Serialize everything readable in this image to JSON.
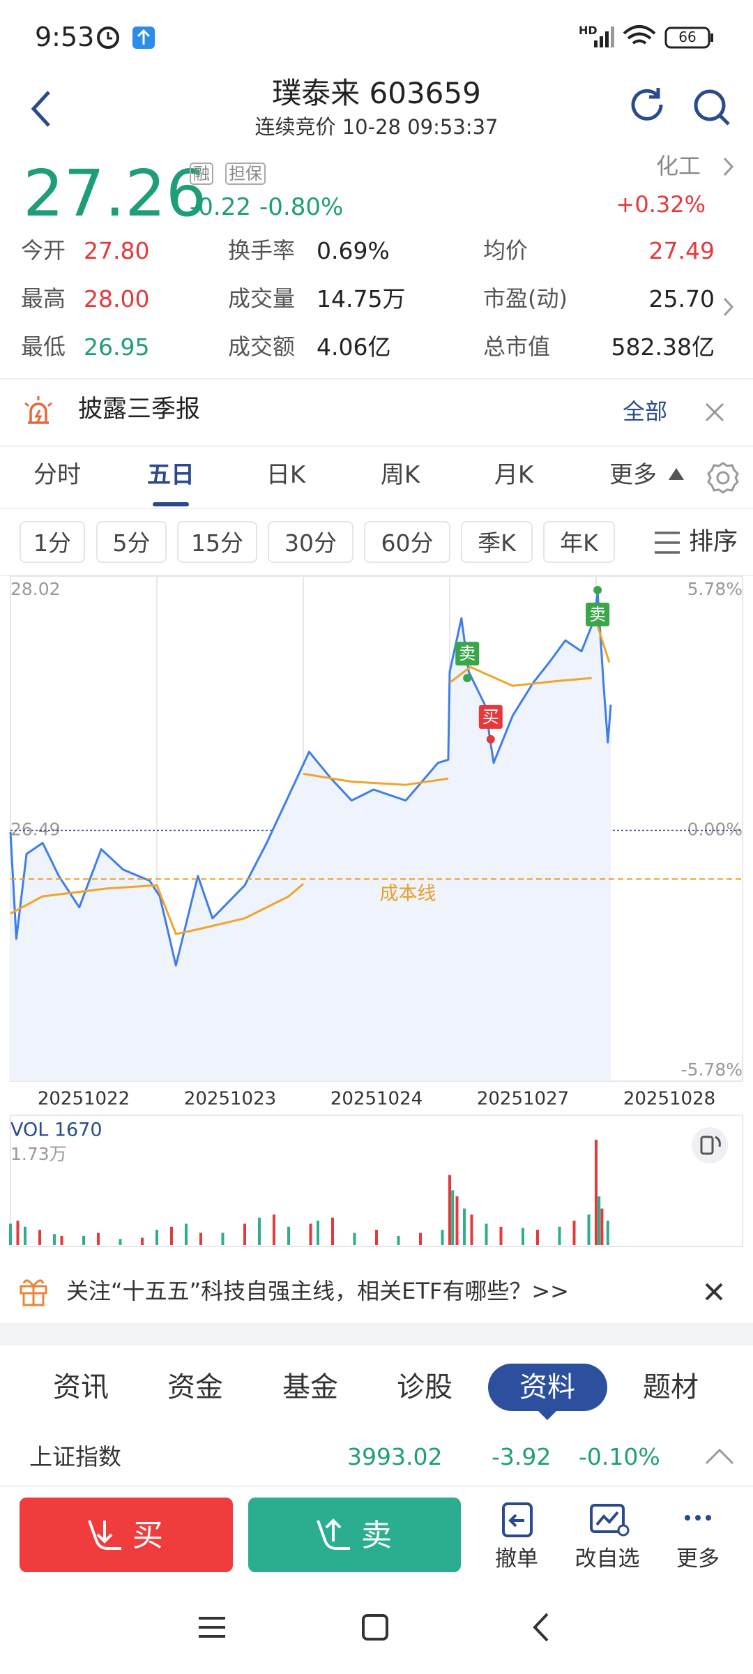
{
  "status": {
    "time": "9:53",
    "hd": "HD",
    "battery": "66"
  },
  "header": {
    "title": "璞泰来 603659",
    "subtitle": "连续竞价 10-28 09:53:37"
  },
  "quote": {
    "price": "27.26",
    "tags": [
      "融",
      "担保"
    ],
    "change": "-0.22",
    "change_pct": "-0.80%",
    "sector": "化工",
    "sector_change": "+0.32%"
  },
  "stats": [
    {
      "label": "今开",
      "value": "27.80",
      "color": "#e5393b"
    },
    {
      "label": "换手率",
      "value": "0.69%",
      "color": "#222222"
    },
    {
      "label": "均价",
      "value": "27.49",
      "color": "#e5393b"
    },
    {
      "label": "最高",
      "value": "28.00",
      "color": "#e5393b"
    },
    {
      "label": "成交量",
      "value": "14.75万",
      "color": "#222222"
    },
    {
      "label": "市盈(动)",
      "value": "25.70",
      "color": "#222222"
    },
    {
      "label": "最低",
      "value": "26.95",
      "color": "#1e9e78"
    },
    {
      "label": "成交额",
      "value": "4.06亿",
      "color": "#222222"
    },
    {
      "label": "总市值",
      "value": "582.38亿",
      "color": "#222222"
    }
  ],
  "notice": {
    "text": "披露三季报",
    "link": "全部"
  },
  "tabs": {
    "items": [
      "分时",
      "五日",
      "日K",
      "周K",
      "月K",
      "更多"
    ],
    "active": 1
  },
  "sub_tabs": {
    "items": [
      "1分",
      "5分",
      "15分",
      "30分",
      "60分",
      "季K",
      "年K"
    ],
    "sort": "排序"
  },
  "chart_data": {
    "type": "line",
    "xlim": [
      0,
      5
    ],
    "ylim": [
      24.96,
      28.02
    ],
    "y2lim": [
      -5.78,
      5.78
    ],
    "yticks": [
      24.96,
      26.49,
      28.02
    ],
    "y2ticks": [
      {
        "value": -5.78,
        "label": "-5.78%"
      },
      {
        "value": 0,
        "label": "0.00%"
      },
      {
        "value": 5.78,
        "label": "5.78%"
      }
    ],
    "xticks": [
      {
        "value": 0.5,
        "label": "20251022"
      },
      {
        "value": 1.5,
        "label": "20251023"
      },
      {
        "value": 2.5,
        "label": "20251024"
      },
      {
        "value": 3.5,
        "label": "20251027"
      },
      {
        "value": 4.5,
        "label": "20251028"
      }
    ],
    "series": [
      {
        "color": "#3f7ee8",
        "x": [
          0,
          0.04,
          0.11,
          0.22,
          0.33,
          0.47,
          0.62,
          0.77,
          0.95,
          1.02,
          1.13,
          1.28,
          1.38,
          1.6,
          1.75,
          1.9,
          2.04,
          2.19,
          2.33,
          2.48,
          2.7,
          2.92,
          2.99,
          3.0,
          3.08,
          3.13,
          3.24,
          3.3,
          3.43,
          3.57,
          3.68,
          3.79,
          3.9,
          3.99,
          4.01,
          4.05,
          4.08,
          4.1
        ],
        "values": [
          26.48,
          25.8,
          26.34,
          26.41,
          26.2,
          26.0,
          26.37,
          26.24,
          26.17,
          26.07,
          25.63,
          26.2,
          25.93,
          26.14,
          26.41,
          26.71,
          26.99,
          26.82,
          26.68,
          26.75,
          26.68,
          26.92,
          26.94,
          27.5,
          27.84,
          27.5,
          27.29,
          26.92,
          27.22,
          27.43,
          27.56,
          27.7,
          27.63,
          27.84,
          28.01,
          27.43,
          27.05,
          27.29
        ]
      },
      {
        "color": "#f0a528",
        "x": [
          0,
          0.22,
          0.66,
          1.0,
          1.13,
          1.28,
          1.6,
          1.9,
          2.0,
          2.0,
          2.0,
          2.33,
          2.7,
          2.99,
          3.0,
          3.0,
          3.14,
          3.43,
          3.72,
          3.97,
          4.0,
          4.0,
          4.09
        ],
        "values": [
          25.96,
          26.07,
          26.12,
          26.14,
          25.83,
          25.86,
          25.93,
          26.07,
          26.15,
          null,
          26.85,
          26.8,
          26.78,
          26.82,
          null,
          27.43,
          27.53,
          27.41,
          27.44,
          27.46,
          null,
          27.82,
          27.56
        ]
      }
    ],
    "cost_line": {
      "value": 26.18,
      "label": "成本线"
    },
    "annotations": [
      {
        "text": "卖",
        "x": 3.12,
        "y": 27.46,
        "color": "#3aa64a"
      },
      {
        "text": "买",
        "x": 3.28,
        "y": 27.07,
        "color": "#e5393b"
      },
      {
        "text": "卖",
        "x": 4.01,
        "y": 28.02,
        "color": "#3aa64a"
      }
    ],
    "volume": {
      "label": "VOL 1670",
      "max_label": "1.73万",
      "ylim": [
        0,
        17300
      ],
      "series": [
        {
          "color": "#e5393b",
          "x": [
            0.05,
            0.2,
            0.35,
            0.6,
            0.9,
            1.1,
            1.3,
            1.6,
            1.8,
            2.05,
            2.2,
            2.5,
            2.8,
            3.0,
            3.05,
            3.15,
            3.35,
            3.6,
            3.85,
            4.0,
            4.04
          ],
          "values": [
            4000,
            2500,
            1500,
            2000,
            1200,
            3000,
            2000,
            3500,
            5000,
            3500,
            4500,
            2500,
            2000,
            11500,
            8000,
            5000,
            3000,
            2500,
            4000,
            17300,
            6000
          ]
        },
        {
          "color": "#2eae8c",
          "x": [
            0.0,
            0.1,
            0.3,
            0.5,
            0.75,
            1.0,
            1.2,
            1.45,
            1.7,
            1.9,
            2.1,
            2.35,
            2.65,
            2.95,
            3.02,
            3.1,
            3.25,
            3.5,
            3.75,
            3.95,
            4.02,
            4.08
          ],
          "values": [
            3500,
            3000,
            1800,
            1500,
            1000,
            2500,
            3500,
            2000,
            4500,
            3000,
            4000,
            2000,
            1500,
            2500,
            9000,
            6000,
            3500,
            2800,
            3000,
            5000,
            8000,
            4000
          ]
        }
      ]
    }
  },
  "banner": {
    "text": "关注“十五五”科技自强主线，相关ETF有哪些？>>"
  },
  "bottom_tabs": {
    "items": [
      "资讯",
      "资金",
      "基金",
      "诊股",
      "资料",
      "题材"
    ],
    "active": 4
  },
  "index": {
    "name": "上证指数",
    "value": "3993.02",
    "change": "-3.92",
    "change_pct": "-0.10%"
  },
  "actions": {
    "buy": "买",
    "sell": "卖",
    "tools": [
      "撤单",
      "改自选",
      "更多"
    ]
  }
}
